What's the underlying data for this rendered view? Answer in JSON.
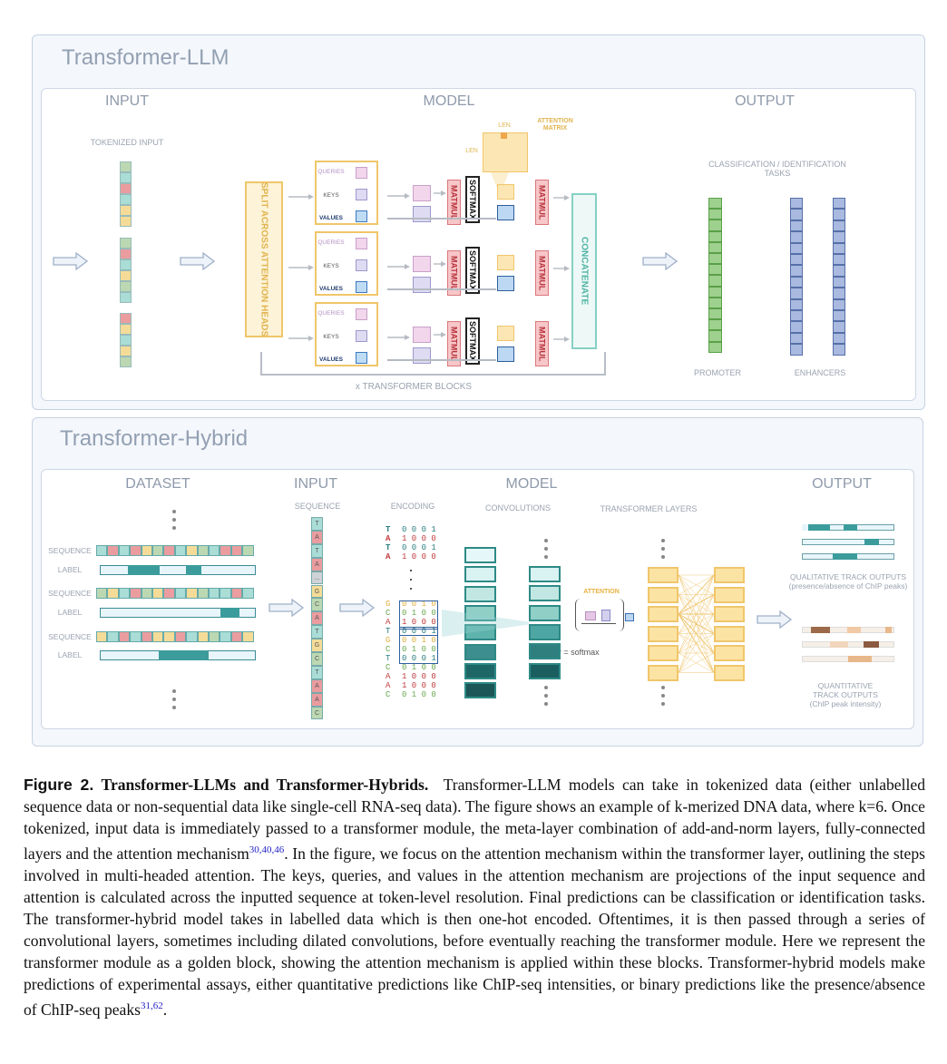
{
  "llm": {
    "title": "Transformer-LLM",
    "input_header": "INPUT",
    "model_header": "MODEL",
    "output_header": "OUTPUT",
    "tokenized_input": "TOKENIZED INPUT",
    "split_label": "SPLIT ACROSS ATTENTION HEADS",
    "heads": [
      {
        "queries": "QUERIES",
        "keys": "KEYS",
        "values": "VALUES"
      },
      {
        "queries": "QUERIES",
        "keys": "KEYS",
        "values": "VALUES"
      },
      {
        "queries": "QUERIES",
        "keys": "KEYS",
        "values": "VALUES"
      }
    ],
    "matmul": "MATMUL",
    "softmax": "SOFTMAX",
    "concatenate": "CONCATENATE",
    "len": "LEN",
    "attention_matrix": "ATTENTION MATRIX",
    "transformer_blocks": "x TRANSFORMER BLOCKS",
    "tasks": "CLASSIFICATION / IDENTIFICATION TASKS",
    "promoter": "PROMOTER",
    "enhancers": "ENHANCERS"
  },
  "hybrid": {
    "title": "Transformer-Hybrid",
    "dataset_header": "DATASET",
    "input_header": "INPUT",
    "model_header": "MODEL",
    "output_header": "OUTPUT",
    "sequence": "SEQUENCE",
    "label": "LABEL",
    "encoding": "ENCODING",
    "convolutions": "CONVOLUTIONS",
    "transformer_layers": "TRANSFORMER LAYERS",
    "attention": "ATTENTION",
    "softmax_def": "σ = softmax",
    "input_sequence": [
      "T",
      "A",
      "T",
      "A",
      "...",
      "G",
      "C",
      "A",
      "T",
      "G",
      "C",
      "T",
      "A",
      "A",
      "C"
    ],
    "encoding_top": [
      [
        "T",
        "0 0 0 1"
      ],
      [
        "A",
        "1 0 0 0"
      ],
      [
        "T",
        "0 0 0 1"
      ],
      [
        "A",
        "1 0 0 0"
      ]
    ],
    "encoding_bottom": [
      [
        "G",
        "0 0 1 0"
      ],
      [
        "C",
        "0 1 0 0"
      ],
      [
        "A",
        "1 0 0 0"
      ],
      [
        "T",
        "0 0 0 1"
      ],
      [
        "G",
        "0 0 1 0"
      ],
      [
        "C",
        "0 1 0 0"
      ],
      [
        "T",
        "0 0 0 1"
      ],
      [
        "C",
        "0 1 0 0"
      ],
      [
        "A",
        "1 0 0 0"
      ],
      [
        "A",
        "1 0 0 0"
      ],
      [
        "C",
        "0 1 0 0"
      ]
    ],
    "qualitative": "QUALITATIVE TRACK OUTPUTS (presence/absence of ChIP peaks)",
    "quantitative": "QUANTITATIVE TRACK OUTPUTS (ChIP peak intensity)"
  },
  "caption": {
    "fig": "Figure 2.",
    "title": "Transformer-LLMs and Transformer-Hybrids.",
    "p1": "Transformer-LLM models can take in tokenized data (either unlabelled sequence data or non-sequential data like single-cell RNA-seq data). The figure shows an example of k-merized DNA data, where k=6. Once tokenized, input data is immediately passed to a transformer module, the meta-layer combination of add-and-norm layers, fully-connected layers and the attention mechanism",
    "ref1": "30,40,46",
    "p2": ". In the figure, we focus on the attention mechanism within the transformer layer, outlining the steps involved in multi-headed attention. The keys, queries, and values in the attention mechanism are projections of the input sequence and attention is calculated across the inputted sequence at token-level resolution. Final predictions can be classification or identification tasks. The transformer-hybrid model takes in labelled data which is then one-hot encoded. Oftentimes, it is then passed through a series of convolutional layers, sometimes including dilated convolutions, before eventually reaching the transformer module. Here we represent the transformer module as a golden block, showing the attention mechanism is applied within these blocks. Transformer-hybrid models make predictions of experimental assays, either quantitative predictions like ChIP-seq intensities, or binary predictions like the presence/absence of ChIP-seq peaks",
    "ref2": "31,62",
    "p3": "."
  },
  "colors": {
    "teal": "#3c9c9c",
    "yellow": "#f0c66a",
    "red": "#e58f92",
    "blue": "#7f97c9",
    "green": "#8cc37a",
    "mint": "#7dcfc2"
  }
}
